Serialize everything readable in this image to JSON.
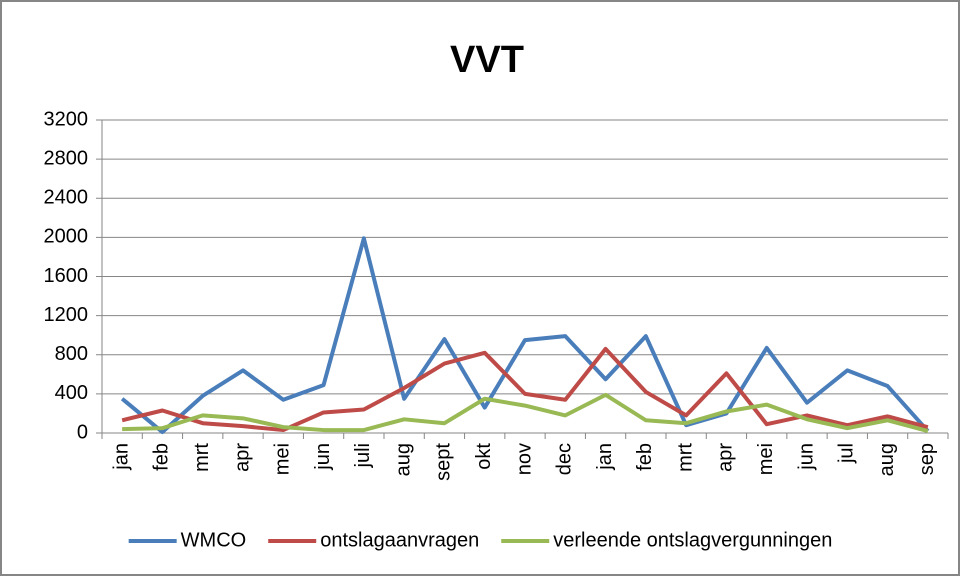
{
  "chart_data": {
    "type": "line",
    "title": "VVT",
    "categories": [
      "jan",
      "feb",
      "mrt",
      "apr",
      "mei",
      "jun",
      "juli",
      "aug",
      "sept",
      "okt",
      "nov",
      "dec",
      "jan",
      "feb",
      "mrt",
      "apr",
      "mei",
      "jun",
      "jul",
      "aug",
      "sep"
    ],
    "series": [
      {
        "name": "WMCO",
        "color": "#4a7ebb",
        "values": [
          350,
          10,
          380,
          640,
          340,
          490,
          1990,
          350,
          960,
          260,
          950,
          990,
          550,
          990,
          80,
          200,
          870,
          310,
          640,
          480,
          20
        ]
      },
      {
        "name": "ontslagaanvragen",
        "color": "#be4b48",
        "values": [
          130,
          230,
          100,
          70,
          30,
          210,
          240,
          460,
          710,
          820,
          400,
          340,
          860,
          420,
          180,
          610,
          90,
          180,
          80,
          170,
          60
        ]
      },
      {
        "name": "verleende ontslagvergunningen",
        "color": "#98b954",
        "values": [
          40,
          50,
          180,
          150,
          60,
          30,
          30,
          140,
          100,
          350,
          280,
          180,
          390,
          130,
          100,
          220,
          290,
          140,
          50,
          130,
          20
        ]
      }
    ],
    "ylim": [
      0,
      3200
    ],
    "yticks": [
      0,
      400,
      800,
      1200,
      1600,
      2000,
      2400,
      2800,
      3200
    ],
    "grid": true,
    "legend": "bottom"
  }
}
